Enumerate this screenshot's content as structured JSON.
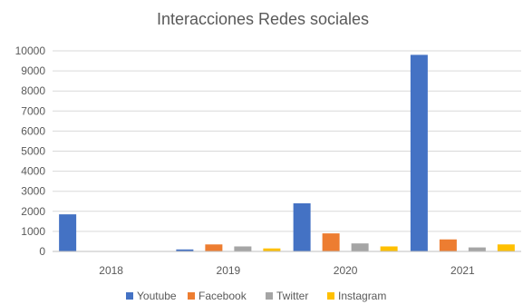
{
  "chart_data": {
    "type": "bar",
    "title": "Interacciones Redes sociales",
    "categories": [
      "2018",
      "2019",
      "2020",
      "2021"
    ],
    "series": [
      {
        "name": "Youtube",
        "color": "#4472c4",
        "values": [
          1850,
          100,
          2400,
          9800
        ]
      },
      {
        "name": "Facebook",
        "color": "#ed7d31",
        "values": [
          0,
          350,
          900,
          600
        ]
      },
      {
        "name": "Twitter",
        "color": "#a5a5a5",
        "values": [
          0,
          250,
          400,
          200
        ]
      },
      {
        "name": "Instagram",
        "color": "#ffc000",
        "values": [
          0,
          150,
          250,
          350
        ]
      }
    ],
    "ylim": [
      0,
      10000
    ],
    "yticks": [
      "0",
      "1000",
      "2000",
      "3000",
      "4000",
      "5000",
      "6000",
      "7000",
      "8000",
      "9000",
      "10000"
    ],
    "grid": true,
    "legend_position": "bottom"
  }
}
